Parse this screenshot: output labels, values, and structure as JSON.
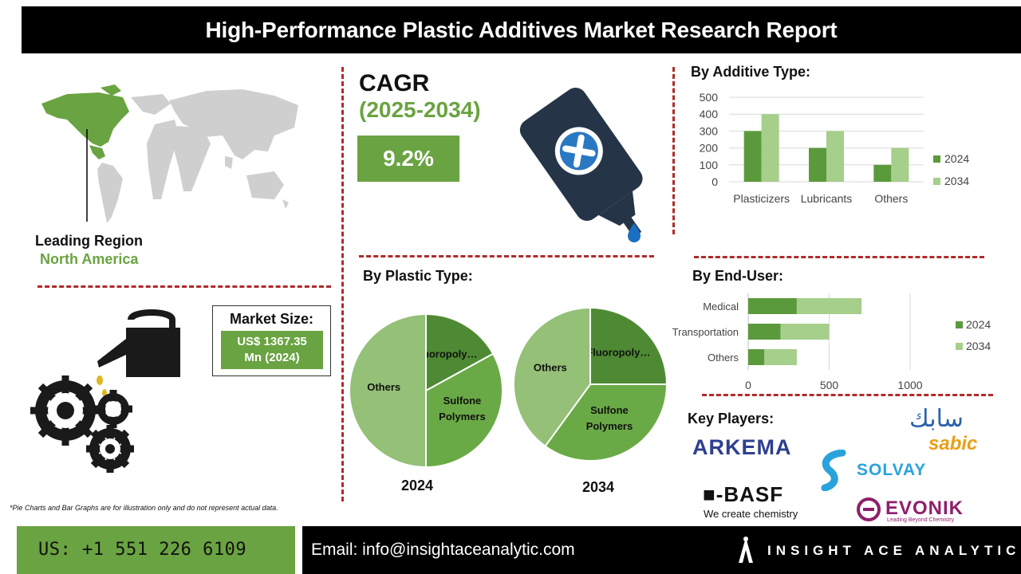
{
  "header": {
    "title": "High-Performance Plastic Additives Market Research Report"
  },
  "region": {
    "label": "Leading Region",
    "value": "North America"
  },
  "market_size": {
    "title": "Market Size:",
    "value_line1": "US$ 1367.35",
    "value_line2": "Mn (2024)"
  },
  "cagr": {
    "title": "CAGR",
    "years": "(2025-2034)",
    "value": "9.2%"
  },
  "sections": {
    "additive": "By Additive Type:",
    "plastic": "By Plastic Type:",
    "end_user": "By End-User:",
    "key_players": "Key Players:"
  },
  "footnote": "*Pie Charts and Bar Graphs are for illustration only and do not represent actual data.",
  "footer": {
    "phone": "US: +1 551 226 6109",
    "email": "Email: info@insightaceanalytic.com",
    "brand": "INSIGHT ACE ANALYTIC"
  },
  "logos": {
    "arkema": "ARKEMA",
    "solvay": "SOLVAY",
    "basf": "■-BASF",
    "basf_tagline": "We create chemistry",
    "evonik": "EVONIK",
    "evonik_tagline": "Leading Beyond Chemistry",
    "sabic_latin": "sabic",
    "sabic_arabic": "سابك"
  },
  "colors": {
    "green_dark": "#5b9a3c",
    "green_light": "#a5cf8a",
    "green_brand": "#6aa341",
    "pie_dark": "#4e8a33",
    "pie_mid": "#6aaa46",
    "pie_light": "#94c077",
    "dash_red": "#b02b2b"
  },
  "icons": [
    "world-map-icon",
    "adhesive-bottle-icon",
    "oil-can-gears-icon"
  ],
  "chart_data": [
    {
      "type": "bar",
      "categories": [
        "Plasticizers",
        "Lubricants",
        "Others"
      ],
      "series": [
        {
          "name": "2024",
          "values": [
            300,
            200,
            100
          ]
        },
        {
          "name": "2034",
          "values": [
            400,
            300,
            200
          ]
        }
      ],
      "ylim": [
        0,
        500
      ],
      "yticks": [
        "0",
        "100",
        "200",
        "300",
        "400",
        "500"
      ],
      "grid": true,
      "legend": "right"
    },
    {
      "type": "bar",
      "orientation": "horizontal-stacked",
      "categories": [
        "Medical",
        "Transportation",
        "Others"
      ],
      "series": [
        {
          "name": "2024",
          "values": [
            300,
            200,
            100
          ]
        },
        {
          "name": "2034",
          "values": [
            400,
            300,
            200
          ]
        }
      ],
      "xlim": [
        0,
        1000
      ],
      "xticks": [
        "0",
        "500",
        "1000"
      ],
      "grid": true,
      "legend": "right"
    },
    {
      "type": "pie",
      "label": "2024",
      "slices": [
        {
          "name": "Fluoropoly…",
          "value": 17
        },
        {
          "name": "Sulfone Polymers",
          "value": 33
        },
        {
          "name": "Others",
          "value": 50
        }
      ]
    },
    {
      "type": "pie",
      "label": "2034",
      "slices": [
        {
          "name": "Fluoropoly…",
          "value": 25
        },
        {
          "name": "Sulfone Polymers",
          "value": 35
        },
        {
          "name": "Others",
          "value": 40
        }
      ]
    }
  ]
}
